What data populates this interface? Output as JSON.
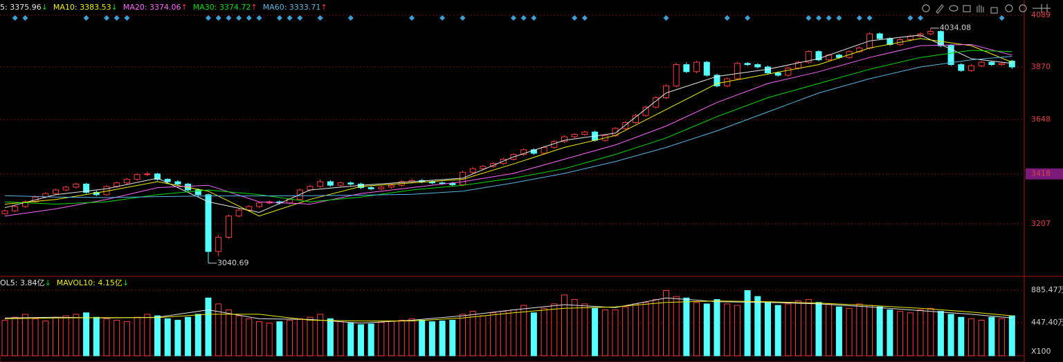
{
  "chart_data": {
    "type": "candlestick",
    "ylim": [
      2985,
      4153
    ],
    "yticks": [
      3207,
      3418,
      3648,
      3870,
      4089
    ],
    "up_color": "#ff3c3c",
    "down_color": "#54ffff",
    "grid": true,
    "ohlc": [
      [
        3250,
        3268,
        3244,
        3262
      ],
      [
        3262,
        3286,
        3256,
        3280
      ],
      [
        3280,
        3306,
        3274,
        3300
      ],
      [
        3300,
        3326,
        3294,
        3320
      ],
      [
        3320,
        3341,
        3314,
        3335
      ],
      [
        3335,
        3356,
        3329,
        3350
      ],
      [
        3350,
        3368,
        3344,
        3362
      ],
      [
        3362,
        3381,
        3356,
        3375
      ],
      [
        3375,
        3380,
        3334,
        3340
      ],
      [
        3340,
        3348,
        3324,
        3330
      ],
      [
        3330,
        3371,
        3326,
        3365
      ],
      [
        3365,
        3386,
        3359,
        3380
      ],
      [
        3380,
        3401,
        3374,
        3395
      ],
      [
        3395,
        3421,
        3389,
        3415
      ],
      [
        3415,
        3428,
        3408,
        3418
      ],
      [
        3418,
        3422,
        3389,
        3395
      ],
      [
        3395,
        3400,
        3379,
        3385
      ],
      [
        3385,
        3392,
        3369,
        3375
      ],
      [
        3375,
        3380,
        3344,
        3350
      ],
      [
        3350,
        3356,
        3324,
        3330
      ],
      [
        3330,
        3335,
        3040.69,
        3090
      ],
      [
        3090,
        3160,
        3070,
        3150
      ],
      [
        3150,
        3246,
        3144,
        3240
      ],
      [
        3240,
        3271,
        3234,
        3265
      ],
      [
        3265,
        3286,
        3259,
        3280
      ],
      [
        3280,
        3301,
        3274,
        3295
      ],
      [
        3295,
        3306,
        3289,
        3300
      ],
      [
        3300,
        3305,
        3289,
        3295
      ],
      [
        3295,
        3316,
        3289,
        3310
      ],
      [
        3310,
        3356,
        3304,
        3350
      ],
      [
        3350,
        3371,
        3344,
        3365
      ],
      [
        3365,
        3395,
        3359,
        3385
      ],
      [
        3385,
        3391,
        3364,
        3370
      ],
      [
        3370,
        3386,
        3364,
        3380
      ],
      [
        3380,
        3386,
        3369,
        3375
      ],
      [
        3375,
        3381,
        3354,
        3360
      ],
      [
        3360,
        3366,
        3349,
        3355
      ],
      [
        3355,
        3368,
        3349,
        3362
      ],
      [
        3362,
        3376,
        3356,
        3370
      ],
      [
        3370,
        3391,
        3364,
        3385
      ],
      [
        3385,
        3396,
        3379,
        3390
      ],
      [
        3390,
        3396,
        3379,
        3385
      ],
      [
        3385,
        3391,
        3374,
        3380
      ],
      [
        3380,
        3386,
        3372,
        3378
      ],
      [
        3378,
        3384,
        3366,
        3372
      ],
      [
        3372,
        3431,
        3366,
        3425
      ],
      [
        3425,
        3446,
        3419,
        3440
      ],
      [
        3440,
        3456,
        3434,
        3450
      ],
      [
        3450,
        3468,
        3444,
        3462
      ],
      [
        3462,
        3486,
        3456,
        3480
      ],
      [
        3480,
        3506,
        3474,
        3500
      ],
      [
        3500,
        3526,
        3494,
        3520
      ],
      [
        3520,
        3526,
        3499,
        3505
      ],
      [
        3505,
        3536,
        3499,
        3530
      ],
      [
        3530,
        3561,
        3524,
        3555
      ],
      [
        3555,
        3581,
        3549,
        3575
      ],
      [
        3575,
        3591,
        3569,
        3585
      ],
      [
        3585,
        3601,
        3579,
        3595
      ],
      [
        3595,
        3601,
        3554,
        3560
      ],
      [
        3560,
        3586,
        3554,
        3580
      ],
      [
        3580,
        3616,
        3574,
        3610
      ],
      [
        3610,
        3641,
        3604,
        3635
      ],
      [
        3635,
        3671,
        3629,
        3665
      ],
      [
        3665,
        3706,
        3659,
        3700
      ],
      [
        3700,
        3746,
        3694,
        3740
      ],
      [
        3740,
        3796,
        3734,
        3790
      ],
      [
        3790,
        3888,
        3784,
        3880
      ],
      [
        3880,
        3890,
        3844,
        3850
      ],
      [
        3850,
        3896,
        3844,
        3890
      ],
      [
        3890,
        3896,
        3829,
        3835
      ],
      [
        3835,
        3841,
        3784,
        3790
      ],
      [
        3790,
        3826,
        3784,
        3820
      ],
      [
        3820,
        3891,
        3814,
        3885
      ],
      [
        3885,
        3891,
        3874,
        3880
      ],
      [
        3880,
        3886,
        3864,
        3870
      ],
      [
        3870,
        3876,
        3839,
        3845
      ],
      [
        3845,
        3851,
        3829,
        3835
      ],
      [
        3835,
        3871,
        3829,
        3865
      ],
      [
        3865,
        3896,
        3859,
        3890
      ],
      [
        3890,
        3941,
        3884,
        3935
      ],
      [
        3935,
        3941,
        3894,
        3900
      ],
      [
        3900,
        3926,
        3894,
        3920
      ],
      [
        3920,
        3926,
        3904,
        3910
      ],
      [
        3910,
        3941,
        3904,
        3935
      ],
      [
        3935,
        3956,
        3929,
        3950
      ],
      [
        3950,
        4016,
        3944,
        4010
      ],
      [
        4010,
        4016,
        3984,
        3990
      ],
      [
        3990,
        3996,
        3959,
        3965
      ],
      [
        3965,
        3991,
        3959,
        3985
      ],
      [
        3985,
        4006,
        3979,
        4000
      ],
      [
        4000,
        4016,
        3994,
        4010
      ],
      [
        4010,
        4034.08,
        4004,
        4020
      ],
      [
        4020,
        4026,
        3954,
        3960
      ],
      [
        3960,
        3966,
        3874,
        3880
      ],
      [
        3880,
        3886,
        3849,
        3855
      ],
      [
        3855,
        3881,
        3849,
        3875
      ],
      [
        3875,
        3896,
        3869,
        3890
      ],
      [
        3890,
        3896,
        3874,
        3880
      ],
      [
        3880,
        3891,
        3874,
        3885
      ],
      [
        3895,
        3900,
        3862,
        3870
      ]
    ],
    "series": [
      {
        "color": "#e8e8e8",
        "x": [
          0,
          5,
          10,
          15,
          20,
          25,
          30,
          35,
          40,
          45,
          50,
          55,
          60,
          65,
          70,
          75,
          80,
          85,
          90,
          95,
          99
        ],
        "values": [
          3275,
          3330,
          3355,
          3400,
          3300,
          3255,
          3350,
          3370,
          3385,
          3400,
          3490,
          3560,
          3590,
          3760,
          3830,
          3860,
          3905,
          3980,
          4005,
          3905,
          3885
        ]
      },
      {
        "color": "#f0f000",
        "x": [
          0,
          5,
          10,
          15,
          20,
          25,
          30,
          35,
          40,
          45,
          50,
          55,
          60,
          65,
          70,
          75,
          80,
          85,
          90,
          95,
          99
        ],
        "values": [
          3290,
          3310,
          3345,
          3385,
          3345,
          3240,
          3310,
          3365,
          3380,
          3395,
          3460,
          3530,
          3580,
          3690,
          3800,
          3840,
          3880,
          3950,
          3990,
          3960,
          3890
        ]
      },
      {
        "color": "#ff66ff",
        "x": [
          0,
          5,
          10,
          15,
          20,
          25,
          30,
          35,
          40,
          45,
          50,
          55,
          60,
          65,
          70,
          75,
          80,
          85,
          90,
          95,
          99
        ],
        "values": [
          3240,
          3270,
          3310,
          3360,
          3370,
          3300,
          3290,
          3335,
          3360,
          3385,
          3420,
          3480,
          3540,
          3620,
          3720,
          3800,
          3850,
          3910,
          3960,
          3965,
          3920
        ]
      },
      {
        "color": "#00e000",
        "x": [
          0,
          5,
          10,
          15,
          20,
          25,
          30,
          35,
          40,
          45,
          50,
          55,
          60,
          65,
          70,
          75,
          80,
          85,
          90,
          95,
          99
        ],
        "values": [
          3300,
          3290,
          3300,
          3330,
          3350,
          3330,
          3300,
          3320,
          3350,
          3370,
          3400,
          3440,
          3500,
          3570,
          3660,
          3740,
          3800,
          3860,
          3910,
          3940,
          3935
        ]
      },
      {
        "color": "#59b8e6",
        "x": [
          0,
          5,
          10,
          15,
          20,
          25,
          30,
          35,
          40,
          45,
          50,
          55,
          60,
          65,
          70,
          75,
          80,
          85,
          90,
          95,
          99
        ],
        "values": [
          3326,
          3320,
          3318,
          3322,
          3325,
          3325,
          3326,
          3328,
          3332,
          3345,
          3380,
          3420,
          3470,
          3530,
          3600,
          3680,
          3760,
          3820,
          3870,
          3900,
          3915
        ]
      }
    ],
    "legend": [
      {
        "text": "5: 3375.96",
        "arrow": "↓",
        "arrow_color": "#00e000"
      },
      {
        "text": "MA10: 3383.53",
        "arrow": "↓",
        "arrow_color": "#00e000"
      },
      {
        "text": "MA20: 3374.06",
        "arrow": "↑",
        "arrow_color": "#ff3c3c"
      },
      {
        "text": "MA30: 3374.72",
        "arrow": "↑",
        "arrow_color": "#ff3c3c"
      },
      {
        "text": "MA60: 3333.71",
        "arrow": "↑",
        "arrow_color": "#ff3c3c"
      }
    ],
    "annotations": [
      {
        "index": 91,
        "value": 4034.08
      },
      {
        "index": 20,
        "value": 3040.69
      }
    ],
    "signals": [
      1,
      2,
      8,
      10,
      11,
      12,
      20,
      21,
      22,
      23,
      24,
      25,
      27,
      28,
      29,
      31,
      34,
      40,
      43,
      45,
      50,
      51,
      52,
      56,
      57,
      65,
      71,
      73,
      79,
      80,
      81,
      82,
      84,
      85,
      89,
      90,
      98
    ],
    "signal_color": "#3aa0d8",
    "volume": {
      "ylim": [
        0,
        1072
      ],
      "yticks": [
        {
          "value": 447.4,
          "label": "447.40万"
        },
        {
          "value": 885.47,
          "label": "885.47万"
        }
      ],
      "values": [
        480,
        520,
        560,
        500,
        470,
        520,
        540,
        560,
        580,
        520,
        500,
        480,
        460,
        520,
        560,
        540,
        500,
        480,
        520,
        560,
        780,
        700,
        620,
        540,
        500,
        460,
        440,
        460,
        480,
        500,
        520,
        560,
        500,
        460,
        440,
        420,
        430,
        450,
        470,
        480,
        500,
        480,
        460,
        470,
        480,
        560,
        600,
        540,
        580,
        600,
        620,
        680,
        580,
        640,
        700,
        820,
        760,
        700,
        640,
        620,
        620,
        660,
        700,
        720,
        760,
        880,
        800,
        780,
        720,
        700,
        760,
        700,
        680,
        880,
        800,
        720,
        680,
        700,
        740,
        760,
        720,
        700,
        660,
        640,
        700,
        680,
        660,
        620,
        600,
        580,
        620,
        640,
        600,
        560,
        520,
        500,
        480,
        520,
        500,
        540
      ],
      "series": [
        {
          "color": "#e8e8e8",
          "x": [
            0,
            5,
            10,
            15,
            20,
            25,
            30,
            35,
            40,
            45,
            50,
            55,
            60,
            65,
            70,
            75,
            80,
            85,
            90,
            95,
            99
          ],
          "values": [
            510,
            520,
            510,
            520,
            620,
            500,
            490,
            440,
            480,
            540,
            620,
            690,
            650,
            780,
            730,
            720,
            700,
            660,
            610,
            560,
            510
          ]
        },
        {
          "color": "#f0f000",
          "x": [
            0,
            5,
            10,
            15,
            20,
            25,
            30,
            35,
            40,
            45,
            50,
            55,
            60,
            65,
            70,
            75,
            80,
            85,
            90,
            95,
            99
          ],
          "values": [
            500,
            510,
            515,
            515,
            560,
            560,
            480,
            470,
            470,
            510,
            580,
            640,
            660,
            720,
            740,
            730,
            710,
            680,
            640,
            590,
            540
          ]
        }
      ],
      "legend": [
        {
          "text": "OL5: 3.84亿",
          "arrow": "↓",
          "arrow_color": "#00e000"
        },
        {
          "text": "MAVOL10: 4.15亿",
          "arrow": "↓",
          "arrow_color": "#00e000"
        }
      ],
      "unit_label": "X100"
    }
  }
}
